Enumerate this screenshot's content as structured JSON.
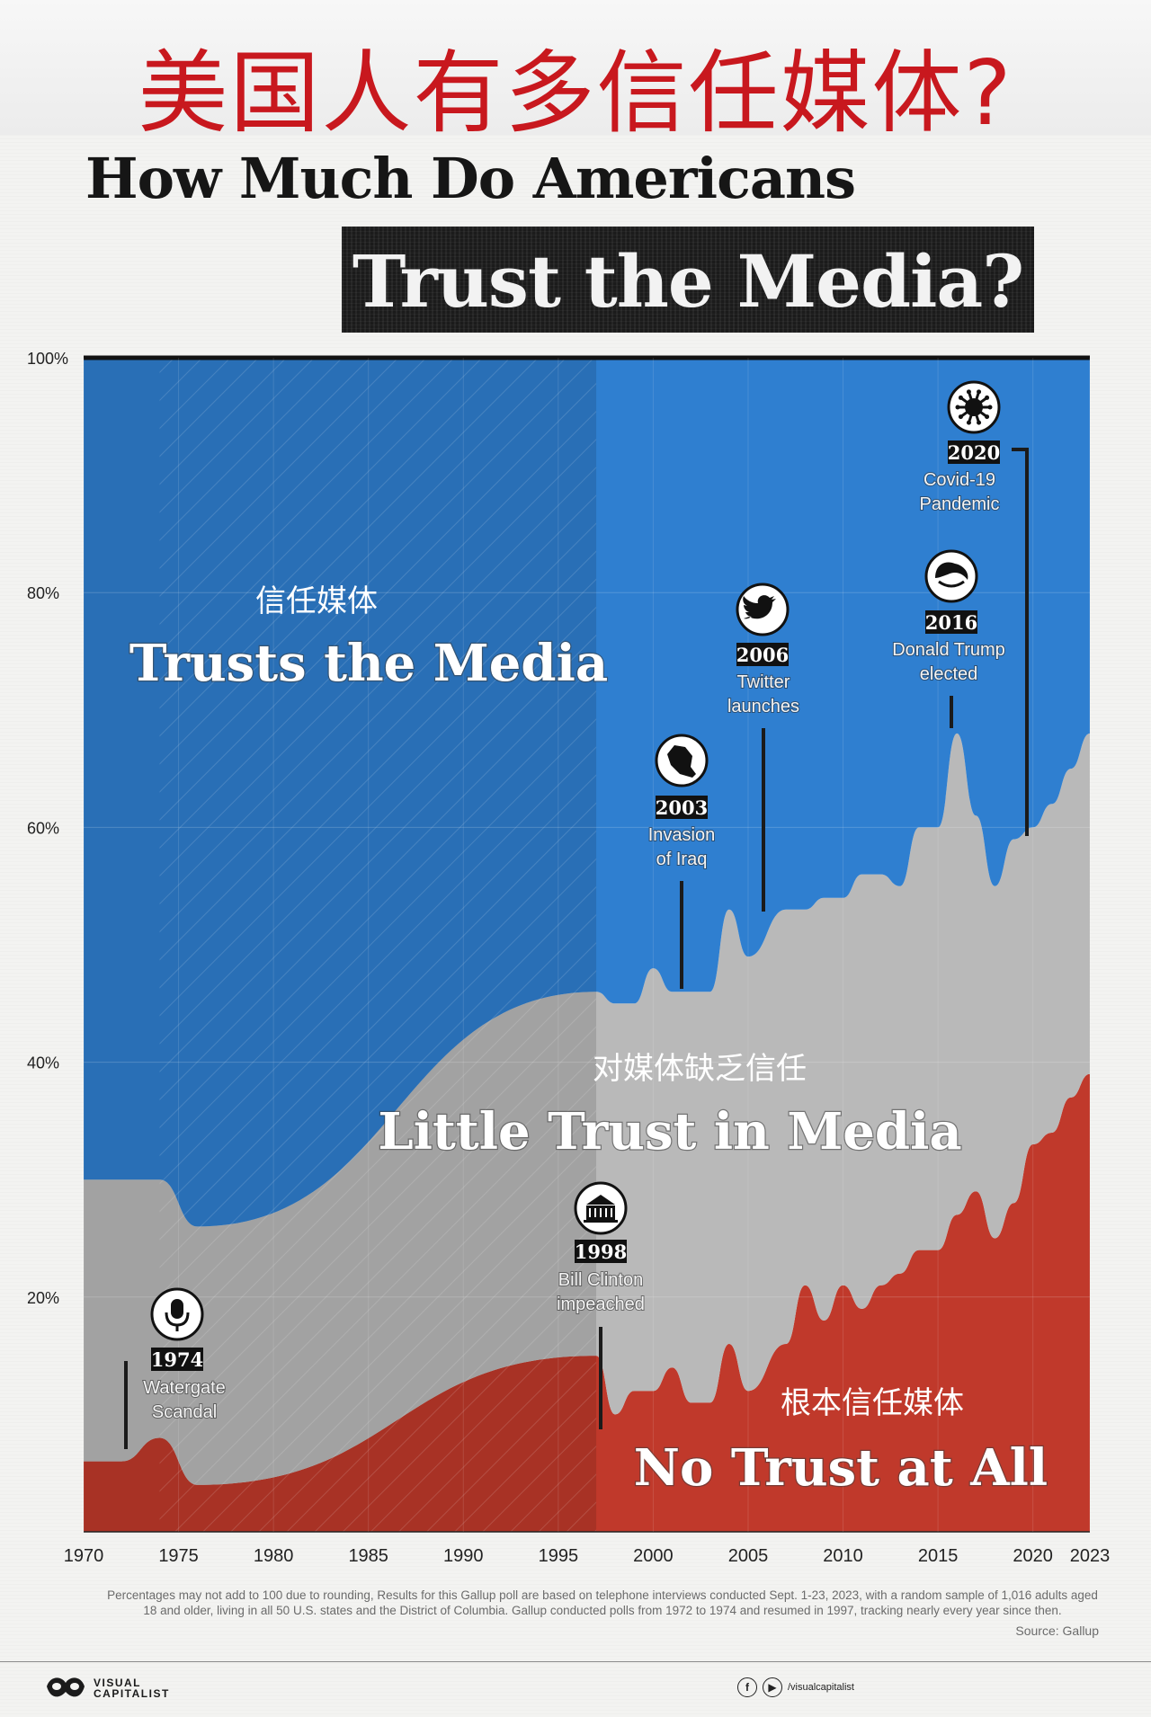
{
  "header": {
    "cn_title": "美国人有多信任媒体?",
    "en_title_line1": "How Much Do Americans",
    "en_title_line2": "Trust the Media?"
  },
  "chart_data": {
    "type": "area",
    "stacked": true,
    "x": [
      1972,
      1974,
      1976,
      1997,
      1998,
      1999,
      2000,
      2001,
      2002,
      2003,
      2004,
      2005,
      2007,
      2008,
      2009,
      2010,
      2011,
      2012,
      2013,
      2014,
      2015,
      2016,
      2017,
      2018,
      2019,
      2020,
      2021,
      2022,
      2023
    ],
    "xlim": [
      1970,
      2023
    ],
    "ylim": [
      0,
      100
    ],
    "x_ticks": [
      "1970",
      "1975",
      "1980",
      "1985",
      "1990",
      "1995",
      "2000",
      "2005",
      "2010",
      "2015",
      "2020",
      "2023"
    ],
    "y_ticks": [
      "100%",
      "80%",
      "60%",
      "40%",
      "20%"
    ],
    "series": [
      {
        "name": "No Trust at All",
        "name_cn": "根本信任媒体",
        "color": "#c0392b",
        "values": [
          6,
          8,
          4,
          15,
          10,
          12,
          12,
          14,
          11,
          11,
          16,
          12,
          16,
          21,
          18,
          21,
          19,
          21,
          22,
          24,
          24,
          27,
          29,
          25,
          28,
          33,
          34,
          37,
          39
        ]
      },
      {
        "name": "Little Trust in Media",
        "name_cn": "对媒体缺乏信任",
        "color": "#b9b9b9",
        "values": [
          24,
          22,
          22,
          31,
          35,
          33,
          36,
          32,
          35,
          35,
          37,
          37,
          37,
          32,
          36,
          33,
          37,
          35,
          33,
          36,
          36,
          41,
          32,
          30,
          31,
          27,
          28,
          28,
          29
        ]
      },
      {
        "name": "Trusts the Media",
        "name_cn": "信任媒体",
        "color": "#2f7fd0",
        "values": [
          70,
          70,
          74,
          54,
          55,
          55,
          52,
          54,
          54,
          54,
          47,
          51,
          47,
          47,
          46,
          46,
          44,
          44,
          45,
          40,
          40,
          32,
          39,
          45,
          41,
          40,
          38,
          35,
          32
        ]
      }
    ],
    "annotations": [
      {
        "year": "1974",
        "label_line1": "Watergate",
        "label_line2": "Scandal",
        "icon": "microphone-icon"
      },
      {
        "year": "1998",
        "label_line1": "Bill Clinton",
        "label_line2": "impeached",
        "icon": "white-house-icon"
      },
      {
        "year": "2003",
        "label_line1": "Invasion",
        "label_line2": "of Iraq",
        "icon": "iraq-map-icon"
      },
      {
        "year": "2006",
        "label_line1": "Twitter",
        "label_line2": "launches",
        "icon": "twitter-bird-icon"
      },
      {
        "year": "2016",
        "label_line1": "Donald Trump",
        "label_line2": "elected",
        "icon": "trump-hair-icon"
      },
      {
        "year": "2020",
        "label_line1": "Covid-19",
        "label_line2": "Pandemic",
        "icon": "virus-icon"
      }
    ]
  },
  "footnote": "Percentages may not add to 100 due to rounding, Results for this Gallup poll are based on telephone interviews conducted Sept. 1-23, 2023, with a random sample of 1,016 adults aged 18 and older, living in all 50 U.S. states and the District of Columbia.  Gallup conducted polls from 1972 to 1974 and resumed in 1997, tracking nearly every year since then.",
  "source": "Source: Gallup",
  "footer": {
    "brand_line1": "VISUAL",
    "brand_line2": "CAPITALIST",
    "social_handle": "/visualcapitalist"
  }
}
